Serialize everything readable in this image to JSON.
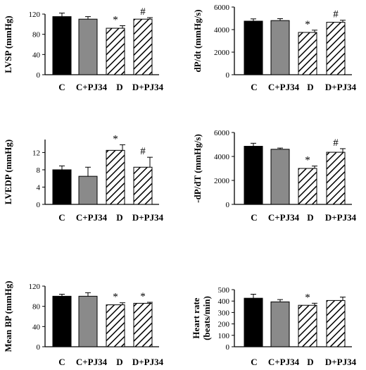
{
  "chart_data": [
    {
      "type": "bar",
      "ylabel": "LVSP (mmHg)",
      "categories": [
        "C",
        "C+PJ34",
        "D",
        "D+PJ34"
      ],
      "values": [
        115,
        110,
        92,
        110
      ],
      "errors": [
        7,
        5,
        5,
        3
      ],
      "annotations": [
        "",
        "",
        "*",
        "#"
      ],
      "ylim": [
        0,
        120
      ],
      "yticks": [
        "0",
        "40",
        "80",
        "120"
      ],
      "yticks_values": [
        0,
        40,
        80,
        120
      ]
    },
    {
      "type": "bar",
      "ylabel": "dP/dt (mmHg/s)",
      "categories": [
        "C",
        "C+PJ34",
        "D",
        "D+PJ34"
      ],
      "values": [
        4750,
        4800,
        3750,
        4650
      ],
      "errors": [
        200,
        170,
        200,
        180
      ],
      "annotations": [
        "",
        "",
        "*",
        "#"
      ],
      "ylim": [
        0,
        6000
      ],
      "yticks": [
        "0",
        "2000",
        "4000",
        "6000"
      ],
      "yticks_values": [
        0,
        2000,
        4000,
        6000
      ]
    },
    {
      "type": "bar",
      "ylabel": "LVEDP (mmHg)",
      "categories": [
        "C",
        "C+PJ34",
        "D",
        "D+PJ34"
      ],
      "values": [
        8,
        6.5,
        12.5,
        8.6
      ],
      "errors": [
        0.9,
        2.1,
        1.3,
        2.3
      ],
      "annotations": [
        "",
        "",
        "*",
        "#"
      ],
      "ylim": [
        0,
        15
      ],
      "yticks": [
        "0",
        "4",
        "8",
        "12"
      ],
      "yticks_values": [
        0,
        4,
        8,
        12
      ]
    },
    {
      "type": "bar",
      "ylabel": "-dP/dT (mmHg/s)",
      "categories": [
        "C",
        "C+PJ34",
        "D",
        "D+PJ34"
      ],
      "values": [
        4850,
        4600,
        3000,
        4350
      ],
      "errors": [
        250,
        100,
        200,
        300
      ],
      "annotations": [
        "",
        "",
        "*",
        "#"
      ],
      "ylim": [
        0,
        6000
      ],
      "yticks": [
        "0",
        "2000",
        "4000",
        "6000"
      ],
      "yticks_values": [
        0,
        2000,
        4000,
        6000
      ]
    },
    {
      "type": "bar",
      "ylabel": "Mean BP (mmHg)",
      "categories": [
        "C",
        "C+PJ34",
        "D",
        "D+PJ34"
      ],
      "values": [
        100,
        100,
        83,
        86
      ],
      "errors": [
        4,
        7,
        4,
        2
      ],
      "annotations": [
        "",
        "",
        "*",
        "*"
      ],
      "ylim": [
        0,
        120
      ],
      "yticks": [
        "0",
        "40",
        "80",
        "120"
      ],
      "yticks_values": [
        0,
        40,
        80,
        120
      ]
    },
    {
      "type": "bar",
      "ylabel": [
        "Heart rate",
        "(beats/min)"
      ],
      "categories": [
        "C",
        "C+PJ34",
        "D",
        "D+PJ34"
      ],
      "values": [
        425,
        393,
        363,
        405
      ],
      "errors": [
        35,
        20,
        18,
        30
      ],
      "annotations": [
        "",
        "",
        "*",
        ""
      ],
      "ylim": [
        0,
        500
      ],
      "yticks": [
        "0",
        "100",
        "200",
        "300",
        "400",
        "500"
      ],
      "yticks_values": [
        0,
        100,
        200,
        300,
        400,
        500
      ]
    }
  ],
  "colors": {
    "C": "#000000",
    "C+PJ34": "#8a8a8a",
    "D": "hatch",
    "D+PJ34": "hatch"
  }
}
